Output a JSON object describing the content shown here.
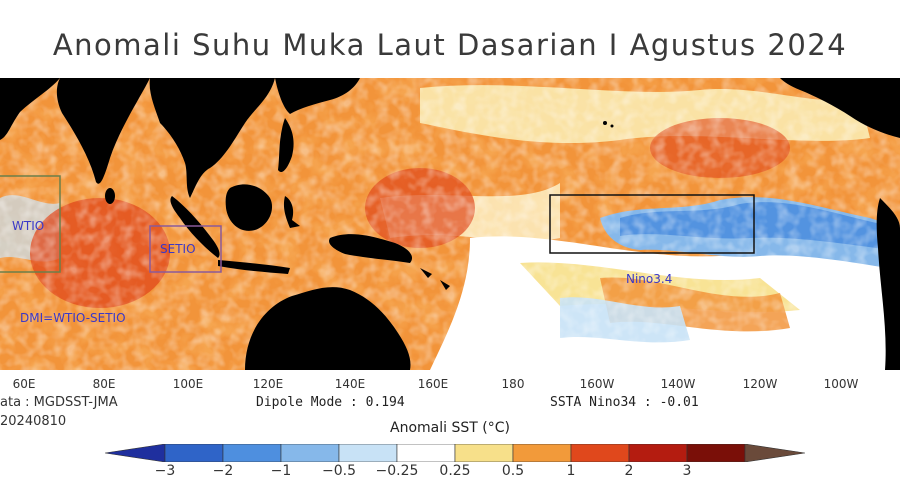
{
  "title": "Anomali Suhu Muka Laut Dasarian I Agustus 2024",
  "map": {
    "regions": {
      "wtio": "WTIO",
      "setio": "SETIO",
      "dmi": "DMI=WTIO-SETIO",
      "nino34": "Nino3.4"
    },
    "lon_ticks": [
      "60E",
      "80E",
      "100E",
      "120E",
      "140E",
      "160E",
      "180",
      "160W",
      "140W",
      "120W",
      "100W"
    ]
  },
  "info": {
    "source": "ata : MGDSST-JMA",
    "date": "20240810",
    "dipole_mode": "Dipole Mode : 0.194",
    "ssta_nino34": "SSTA Nino34 : -0.01"
  },
  "colorbar": {
    "title": "Anomali SST (°C)",
    "labels": [
      "−3",
      "−2",
      "−1",
      "−0.5",
      "−0.25",
      "0.25",
      "0.5",
      "1",
      "2",
      "3"
    ],
    "colors": [
      "#1f2f9e",
      "#2f64c8",
      "#4e8fdf",
      "#86b8ea",
      "#c8e2f6",
      "#ffffff",
      "#f7e08a",
      "#f29a3a",
      "#e0481c",
      "#b41c10",
      "#7a0f08",
      "#6a4a3a"
    ]
  }
}
